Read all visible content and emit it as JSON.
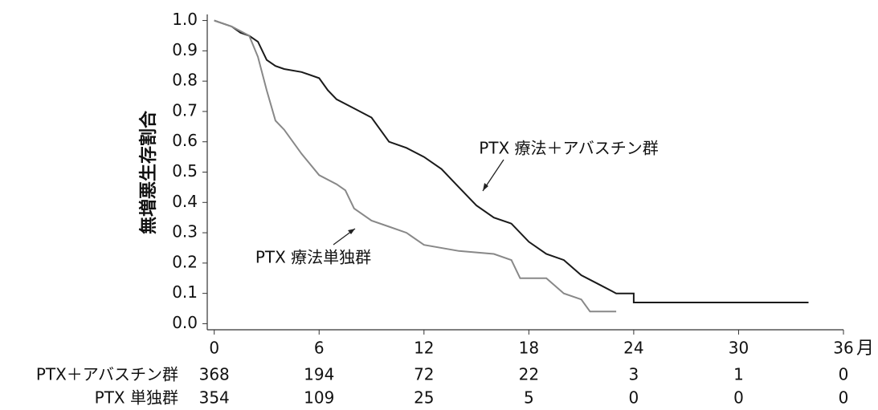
{
  "chart_data": {
    "type": "line",
    "ylabel": "無増悪生存割合",
    "xlabel": "月",
    "xlim": [
      -0.4,
      36
    ],
    "ylim": [
      -0.02,
      1.02
    ],
    "xticks": [
      0,
      6,
      12,
      18,
      24,
      30,
      36
    ],
    "yticks": [
      {
        "value": 0,
        "label": "0.0"
      },
      0.1,
      0.2,
      0.3,
      0.4,
      0.5,
      0.6,
      0.7,
      0.8,
      0.9,
      {
        "value": 1,
        "label": "1.0"
      }
    ],
    "series": [
      {
        "name": "PTX 療法＋アバスチン群",
        "color": "#1a1a1a",
        "x": [
          0,
          1,
          1.5,
          2,
          2.5,
          3,
          3.5,
          4,
          5,
          6,
          6.5,
          7,
          8,
          9,
          10,
          11,
          12,
          13,
          14,
          15,
          16,
          17,
          18,
          19,
          20,
          21,
          22,
          23,
          24,
          24,
          34
        ],
        "values": [
          1.0,
          0.98,
          0.96,
          0.95,
          0.93,
          0.87,
          0.85,
          0.84,
          0.83,
          0.81,
          0.77,
          0.74,
          0.71,
          0.68,
          0.6,
          0.58,
          0.55,
          0.51,
          0.45,
          0.39,
          0.35,
          0.33,
          0.27,
          0.23,
          0.21,
          0.16,
          0.13,
          0.1,
          0.1,
          0.07,
          0.07
        ]
      },
      {
        "name": "PTX 療法単独群",
        "color": "#888888",
        "x": [
          0,
          1,
          2,
          2.5,
          3,
          3.5,
          4,
          5,
          6,
          7,
          7.5,
          8,
          9,
          10,
          11,
          12,
          14,
          16,
          17,
          17.5,
          19,
          20,
          21,
          21.5,
          23
        ],
        "values": [
          1.0,
          0.98,
          0.95,
          0.88,
          0.77,
          0.67,
          0.64,
          0.56,
          0.49,
          0.46,
          0.44,
          0.38,
          0.34,
          0.32,
          0.3,
          0.26,
          0.24,
          0.23,
          0.21,
          0.15,
          0.15,
          0.1,
          0.08,
          0.04,
          0.04
        ]
      }
    ],
    "risk_table": [
      {
        "name": "PTX＋アバスチン群",
        "values": [
          368,
          194,
          72,
          22,
          3,
          1,
          0
        ]
      },
      {
        "name": "PTX 単独群",
        "values": [
          354,
          109,
          25,
          5,
          0,
          0,
          0
        ]
      }
    ]
  }
}
